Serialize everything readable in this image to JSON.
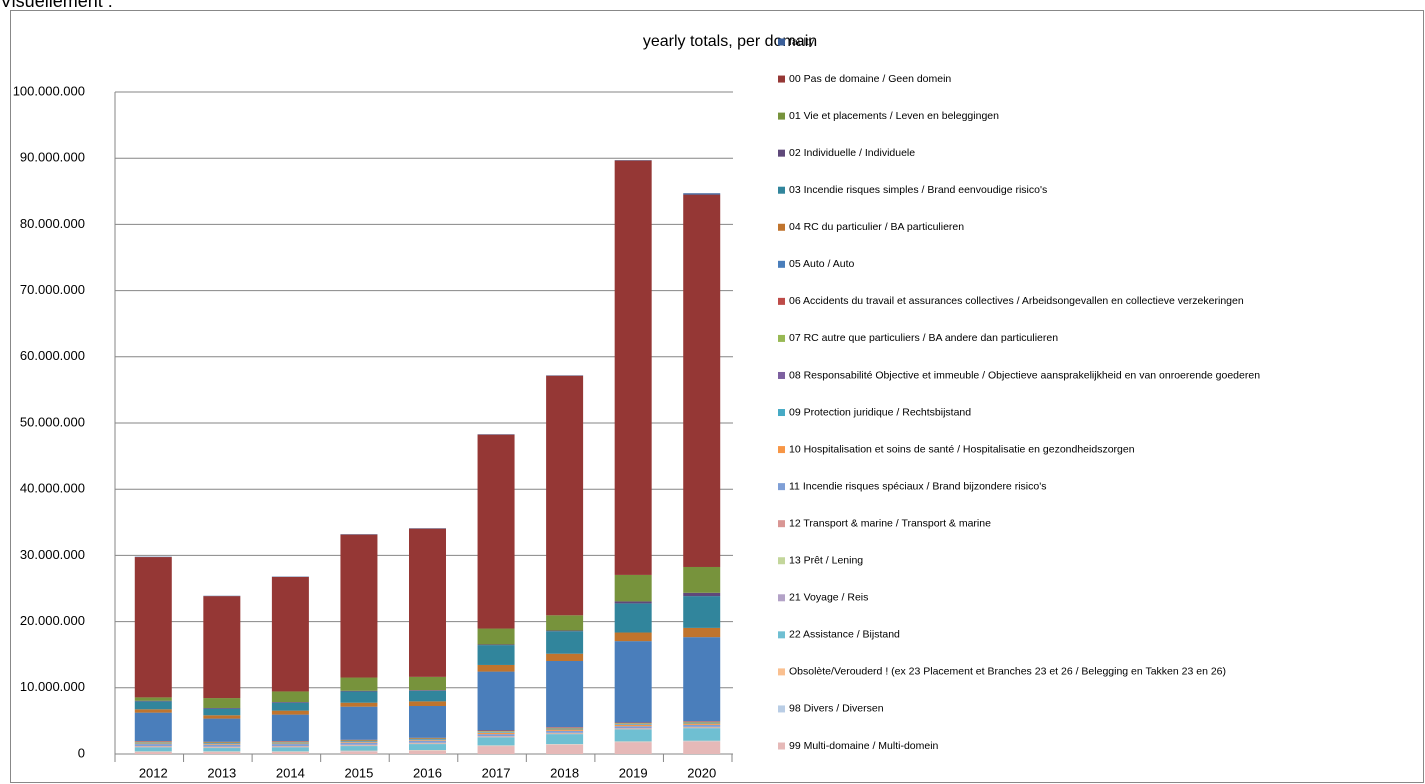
{
  "page_heading": "Visuellement :",
  "chart_data": {
    "type": "bar",
    "stacked": true,
    "title": "yearly totals, per domain",
    "categories": [
      "2012",
      "2013",
      "2014",
      "2015",
      "2016",
      "2017",
      "2018",
      "2019",
      "2020"
    ],
    "ylim": [
      0,
      100000000
    ],
    "yticks": [
      0,
      {
        "value": 10000000,
        "label": "10.000.000"
      },
      {
        "value": 20000000,
        "label": "20.000.000"
      },
      {
        "value": 30000000,
        "label": "30.000.000"
      },
      {
        "value": 40000000,
        "label": "40.000.000"
      },
      {
        "value": 50000000,
        "label": "50.000.000"
      },
      {
        "value": 60000000,
        "label": "60.000.000"
      },
      {
        "value": 70000000,
        "label": "70.000.000"
      },
      {
        "value": 80000000,
        "label": "80.000.000"
      },
      {
        "value": 90000000,
        "label": "90.000.000"
      },
      {
        "value": 100000000,
        "label": "100.000.000"
      }
    ],
    "grid": true,
    "legend": "right",
    "series": [
      {
        "name": "faulty",
        "color": "#3a5f9a",
        "values": [
          50000,
          50000,
          50000,
          50000,
          50000,
          50000,
          50000,
          50000,
          200000
        ]
      },
      {
        "name": "00  Pas de domaine / Geen domein",
        "color": "#953735",
        "values": [
          21200000,
          15400000,
          17300000,
          21600000,
          22400000,
          29300000,
          36200000,
          62600000,
          56250000
        ]
      },
      {
        "name": "01  Vie et placements / Leven en beleggingen",
        "color": "#77933c",
        "values": [
          500000,
          1500000,
          1600000,
          2000000,
          2000000,
          2400000,
          2300000,
          4000000,
          3900000
        ]
      },
      {
        "name": "02  Individuelle / Individuele",
        "color": "#5f497a",
        "values": [
          100000,
          100000,
          100000,
          100000,
          100000,
          100000,
          100000,
          300000,
          500000
        ]
      },
      {
        "name": "03  Incendie risques simples / Brand eenvoudige risico's",
        "color": "#31859c",
        "values": [
          1200000,
          1000000,
          1200000,
          1700000,
          1600000,
          3000000,
          3400000,
          4400000,
          4800000
        ]
      },
      {
        "name": "04  RC du particulier / BA particulieren",
        "color": "#c0742d",
        "values": [
          500000,
          500000,
          600000,
          600000,
          700000,
          1000000,
          1100000,
          1300000,
          1400000
        ]
      },
      {
        "name": "05  Auto / Auto",
        "color": "#4a7ebb",
        "values": [
          4300000,
          3500000,
          4000000,
          5000000,
          4800000,
          8900000,
          10000000,
          12300000,
          12700000
        ]
      },
      {
        "name": "06  Accidents du travail et assurances collectives / Arbeidsongevallen en collectieve verzekeringen",
        "color": "#be4b48",
        "values": [
          100000,
          100000,
          100000,
          100000,
          100000,
          100000,
          100000,
          100000,
          100000
        ]
      },
      {
        "name": "07  RC autre que particuliers / BA andere dan particulieren",
        "color": "#98b954",
        "values": [
          100000,
          100000,
          100000,
          100000,
          100000,
          100000,
          100000,
          100000,
          100000
        ]
      },
      {
        "name": "08  Responsabilité Objective et immeuble / Objectieve aansprakelijkheid en van onroerende goederen",
        "color": "#7d60a0",
        "values": [
          50000,
          50000,
          50000,
          50000,
          50000,
          50000,
          50000,
          50000,
          50000
        ]
      },
      {
        "name": "09  Protection juridique / Rechtsbijstand",
        "color": "#46aac5",
        "values": [
          100000,
          100000,
          100000,
          100000,
          100000,
          100000,
          100000,
          100000,
          100000
        ]
      },
      {
        "name": "10  Hospitalisation et soins de santé / Hospitalisatie en gezondheidszorgen",
        "color": "#f79646",
        "values": [
          100000,
          100000,
          100000,
          100000,
          100000,
          200000,
          200000,
          200000,
          200000
        ]
      },
      {
        "name": "11  Incendie risques spéciaux / Brand bijzondere risico's",
        "color": "#7f9fd6",
        "values": [
          300000,
          300000,
          300000,
          300000,
          300000,
          300000,
          300000,
          300000,
          300000
        ]
      },
      {
        "name": "12  Transport & marine / Transport & marine",
        "color": "#d99694",
        "values": [
          100000,
          100000,
          100000,
          100000,
          100000,
          100000,
          100000,
          100000,
          100000
        ]
      },
      {
        "name": "13  Prêt / Lening",
        "color": "#c3d69b",
        "values": [
          50000,
          50000,
          50000,
          50000,
          50000,
          50000,
          50000,
          50000,
          50000
        ]
      },
      {
        "name": "21  Voyage / Reis",
        "color": "#b3a2c7",
        "values": [
          50000,
          50000,
          50000,
          50000,
          50000,
          50000,
          50000,
          50000,
          50000
        ]
      },
      {
        "name": "22  Assistance / Bijstand",
        "color": "#6fbfd2",
        "values": [
          600000,
          500000,
          600000,
          700000,
          900000,
          1200000,
          1500000,
          1800000,
          1900000
        ]
      },
      {
        "name": "Obsolète/Verouderd ! (ex 23  Placement et Branches 23 et 26 / Belegging en Takken 23 en 26)",
        "color": "#fac090",
        "values": [
          50000,
          50000,
          50000,
          50000,
          50000,
          50000,
          50000,
          50000,
          50000
        ]
      },
      {
        "name": "98  Divers / Diversen",
        "color": "#b9cde5",
        "values": [
          50000,
          50000,
          50000,
          50000,
          50000,
          50000,
          50000,
          50000,
          50000
        ]
      },
      {
        "name": "99  Multi-domaine / Multi-domein",
        "color": "#e6b9b8",
        "values": [
          300000,
          300000,
          300000,
          400000,
          500000,
          1200000,
          1400000,
          1800000,
          1900000
        ]
      }
    ]
  }
}
